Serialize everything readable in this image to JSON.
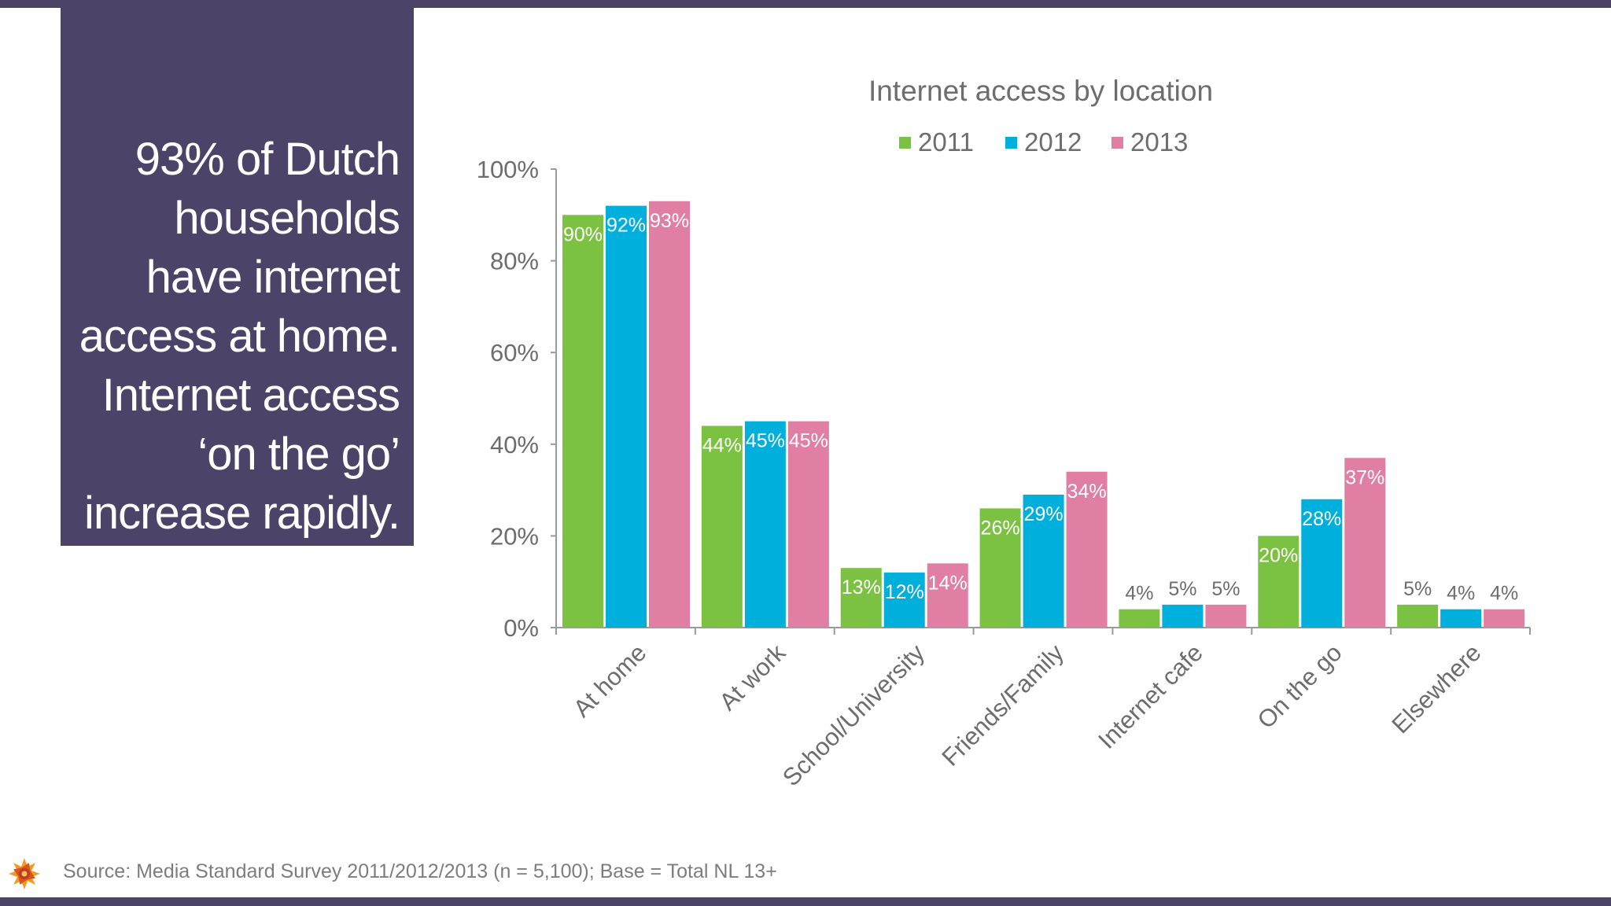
{
  "headline": {
    "lines": [
      "93% of Dutch",
      "households",
      "have internet",
      "access at home.",
      "Internet access",
      "‘on the go’",
      "increase rapidly."
    ]
  },
  "source": "Source: Media Standard Survey 2011/2012/2013 (n =  5,100); Base = Total NL 13+",
  "colors": {
    "frame": "#4b4368",
    "series_2011": "#7cc242",
    "series_2012": "#00afdb",
    "series_2013": "#e07ea3",
    "axis": "#9a9a9a",
    "text": "#6d6d6d"
  },
  "logo_icon": "sun-logo-icon",
  "chart_data": {
    "type": "bar",
    "title": "Internet access by location",
    "categories": [
      "At home",
      "At work",
      "School/University",
      "Friends/Family",
      "Internet cafe",
      "On the go",
      "Elsewhere"
    ],
    "series": [
      {
        "name": "2011",
        "values": [
          90,
          44,
          13,
          26,
          4,
          20,
          5
        ],
        "labels": [
          "90%",
          "44%",
          "13%",
          "26%",
          "4%",
          "20%",
          "5%"
        ]
      },
      {
        "name": "2012",
        "values": [
          92,
          45,
          12,
          29,
          5,
          28,
          4
        ],
        "labels": [
          "92%",
          "45%",
          "12%",
          "29%",
          "5%",
          "28%",
          "4%"
        ]
      },
      {
        "name": "2013",
        "values": [
          93,
          45,
          14,
          34,
          5,
          37,
          4
        ],
        "labels": [
          "93%",
          "45%",
          "14%",
          "34%",
          "5%",
          "37%",
          "4%"
        ]
      }
    ],
    "yticks": [
      "0%",
      "20%",
      "40%",
      "60%",
      "80%",
      "100%"
    ],
    "ylim": [
      0,
      100
    ],
    "grid": false,
    "legend_position": "top"
  }
}
